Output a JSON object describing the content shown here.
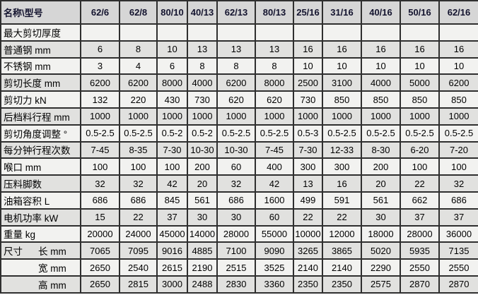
{
  "table": {
    "corner_label": "名称\\型号",
    "models": [
      "62/6",
      "62/8",
      "80/10",
      "40/13",
      "62/13",
      "80/13",
      "25/16",
      "31/16",
      "40/16",
      "50/16",
      "62/16"
    ],
    "rows": [
      {
        "label": "最大剪切厚度",
        "values": [
          "",
          "",
          "",
          "",
          "",
          "",
          "",
          "",
          "",
          "",
          ""
        ]
      },
      {
        "label": "普通钢 mm",
        "values": [
          "6",
          "8",
          "10",
          "13",
          "13",
          "13",
          "16",
          "16",
          "16",
          "16",
          "16"
        ]
      },
      {
        "label": "不锈钢 mm",
        "values": [
          "3",
          "4",
          "6",
          "8",
          "8",
          "8",
          "10",
          "10",
          "10",
          "10",
          "10"
        ]
      },
      {
        "label": "剪切长度 mm",
        "values": [
          "6200",
          "6200",
          "8000",
          "4000",
          "6200",
          "8000",
          "2500",
          "3100",
          "4000",
          "5000",
          "6200"
        ]
      },
      {
        "label": "剪切力 kN",
        "values": [
          "132",
          "220",
          "430",
          "730",
          "620",
          "620",
          "730",
          "850",
          "850",
          "850",
          "850"
        ]
      },
      {
        "label": "后档料行程 mm",
        "values": [
          "1000",
          "1000",
          "1000",
          "1000",
          "1000",
          "1000",
          "1000",
          "1000",
          "1000",
          "1000",
          "1000"
        ]
      },
      {
        "label": "剪切角度调整 °",
        "values": [
          "0.5-2.5",
          "0.5-2.5",
          "0.5-2",
          "0.5-2",
          "0.5-2.5",
          "0.5-2.5",
          "0.5-3",
          "0.5-2.5",
          "0.5-2.5",
          "0.5-2.5",
          "0.5-2.5"
        ]
      },
      {
        "label": "每分钟行程次数",
        "values": [
          "7-45",
          "8-35",
          "7-30",
          "10-30",
          "10-30",
          "7-45",
          "7-30",
          "12-33",
          "8-30",
          "6-20",
          "7-20"
        ]
      },
      {
        "label": "喉口 mm",
        "values": [
          "100",
          "100",
          "100",
          "200",
          "60",
          "400",
          "300",
          "300",
          "200",
          "100",
          "100"
        ]
      },
      {
        "label": "压料脚数",
        "values": [
          "32",
          "32",
          "42",
          "20",
          "32",
          "42",
          "13",
          "16",
          "20",
          "22",
          "32"
        ]
      },
      {
        "label": "油箱容积 L",
        "values": [
          "686",
          "686",
          "845",
          "561",
          "686",
          "1600",
          "499",
          "591",
          "561",
          "662",
          "686"
        ]
      },
      {
        "label": "电机功率 kW",
        "values": [
          "15",
          "22",
          "37",
          "30",
          "30",
          "60",
          "22",
          "22",
          "30",
          "37",
          "37"
        ]
      },
      {
        "label": "重量 kg",
        "values": [
          "20000",
          "24000",
          "45000",
          "14000",
          "28000",
          "55000",
          "10000",
          "12000",
          "18000",
          "28000",
          "36000"
        ]
      },
      {
        "label": "长 mm",
        "prefix": "尺寸",
        "values": [
          "7065",
          "7095",
          "9016",
          "4885",
          "7100",
          "9090",
          "3265",
          "3865",
          "5020",
          "5935",
          "7135"
        ]
      },
      {
        "label": "宽 mm",
        "prefix": "",
        "values": [
          "2650",
          "2540",
          "2615",
          "2190",
          "2515",
          "3525",
          "2140",
          "2140",
          "2290",
          "2550",
          "2550"
        ]
      },
      {
        "label": "高 mm",
        "prefix": "",
        "values": [
          "2650",
          "2815",
          "3000",
          "2488",
          "2830",
          "3360",
          "2350",
          "2350",
          "2575",
          "2870",
          "2870"
        ]
      }
    ]
  },
  "colors": {
    "border": "#2f2f2f",
    "header_bg": "#d6d6d6",
    "row_light": "#f2f2f0",
    "row_shade": "#e1e1df",
    "header_text": "#13132e",
    "cell_text": "#000000"
  }
}
